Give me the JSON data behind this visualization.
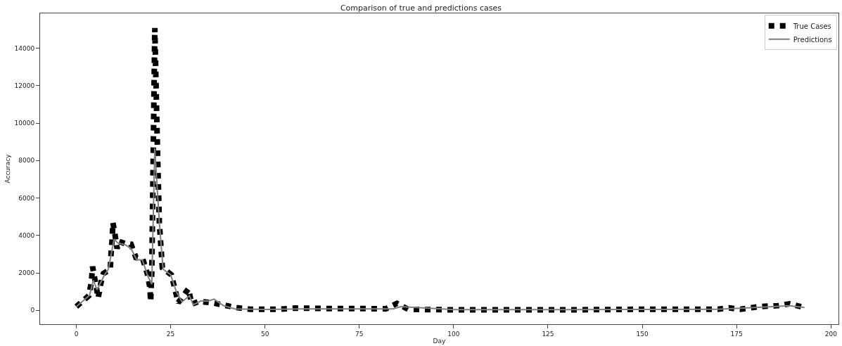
{
  "chart_data": {
    "type": "line",
    "title": "Comparison of true and predictions cases",
    "xlabel": "Day",
    "ylabel": "Accuracy",
    "xlim": [
      -9.6,
      202
    ],
    "xticks": [
      0,
      25,
      50,
      75,
      100,
      125,
      150,
      175,
      200
    ],
    "ylim": [
      -740,
      15860
    ],
    "yticks": [
      0,
      2000,
      4000,
      6000,
      8000,
      10000,
      12000,
      14000
    ],
    "legend": "top right",
    "series": [
      {
        "name": "True Cases",
        "color": "#000000",
        "line_style": "dotted",
        "x": [
          0,
          3.3,
          4,
          4.3,
          5.8,
          6.5,
          7.2,
          9,
          9.2,
          9.5,
          9.7,
          10.2,
          10.8,
          11.3,
          13,
          14.5,
          15.8,
          17.6,
          18.8,
          19.5,
          19.7,
          20,
          20.8,
          21.5,
          22,
          22.8,
          25.2,
          26.2,
          27,
          29.7,
          30.6,
          32.5,
          35.8,
          38.6,
          42.3,
          46,
          54,
          58,
          66,
          74,
          82,
          85,
          88,
          100,
          130,
          140,
          150,
          170,
          173,
          176,
          181,
          186,
          189,
          193
        ],
        "values": [
          200,
          780,
          1520,
          2340,
          670,
          1450,
          1970,
          2190,
          3000,
          3820,
          4680,
          4120,
          3300,
          3680,
          3560,
          3530,
          2820,
          2750,
          1970,
          1220,
          480,
          2000,
          15080,
          8650,
          4680,
          2270,
          1900,
          1080,
          410,
          1150,
          330,
          480,
          410,
          300,
          150,
          60,
          60,
          120,
          100,
          100,
          80,
          370,
          50,
          30,
          30,
          40,
          60,
          60,
          130,
          60,
          200,
          250,
          350,
          150
        ]
      },
      {
        "name": "Predictions",
        "color": "#808080",
        "line_style": "solid",
        "x": [
          0,
          3.5,
          4.5,
          5.5,
          7.5,
          8.5,
          10,
          11,
          13,
          14.5,
          16,
          17.5,
          19,
          20,
          20.8,
          22,
          23,
          25,
          26.5,
          28,
          30,
          31,
          33,
          35,
          36.5,
          39,
          42,
          50,
          60,
          84,
          86,
          100,
          130,
          150,
          170,
          180,
          189,
          193
        ],
        "values": [
          200,
          800,
          1600,
          1100,
          1900,
          2200,
          3800,
          3600,
          3500,
          3300,
          2700,
          2700,
          1800,
          1400,
          8650,
          4700,
          2200,
          1900,
          1000,
          450,
          780,
          300,
          500,
          500,
          600,
          250,
          80,
          50,
          80,
          80,
          200,
          40,
          40,
          50,
          60,
          150,
          250,
          150
        ]
      }
    ]
  }
}
